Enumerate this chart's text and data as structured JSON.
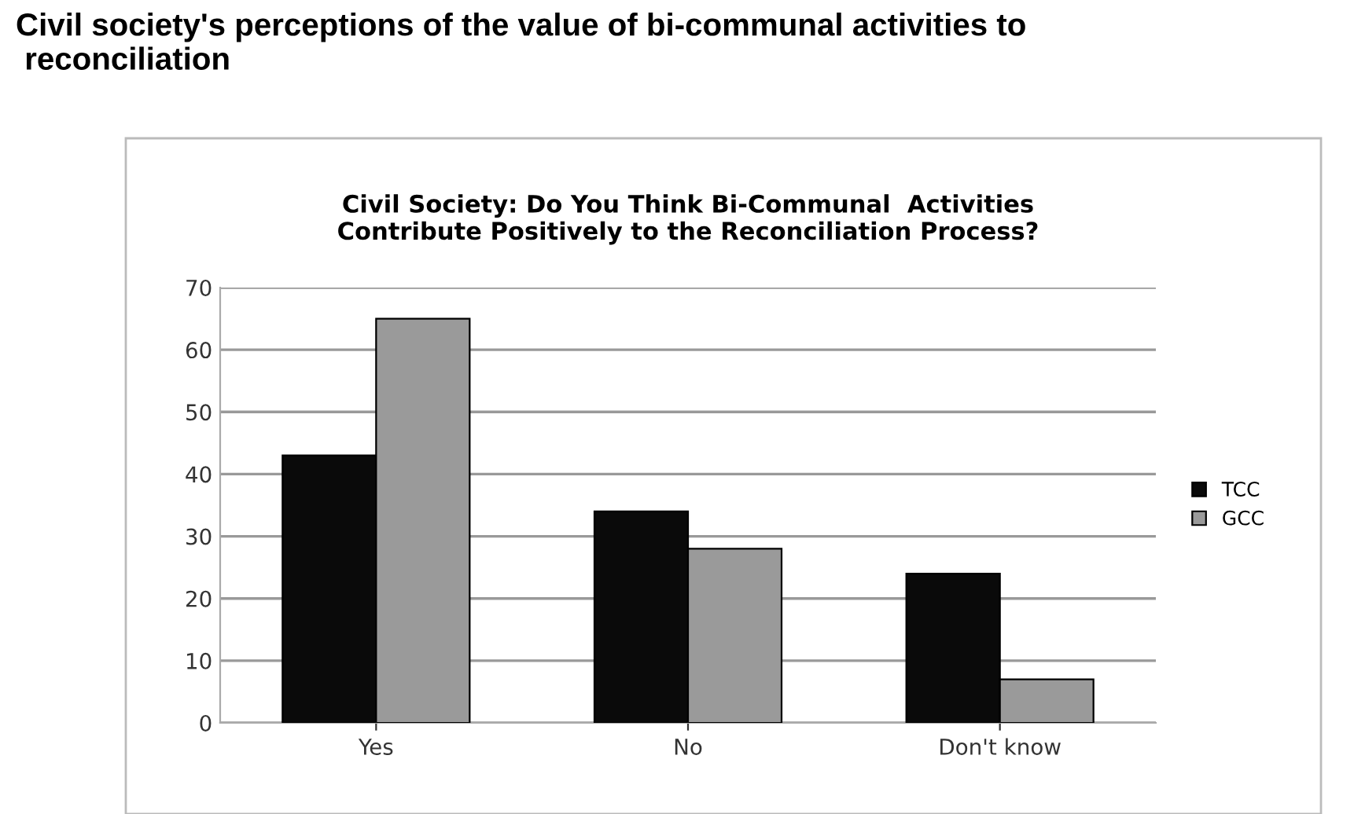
{
  "chart_data": {
    "type": "bar",
    "title": "Civil Society: Do You Think Bi-Communal  Activities\nContribute Positively to the Reconciliation Process?",
    "annotations": [
      "Civil society's perceptions of the value of bi-communal activities to\n reconciliation"
    ],
    "categories": [
      "Yes",
      "No",
      "Don't know"
    ],
    "series": [
      {
        "name": "TCC",
        "color": "#0a0a0a",
        "values": [
          43,
          34,
          24
        ]
      },
      {
        "name": "GCC",
        "color": "#9a9a9a",
        "values": [
          65,
          28,
          7
        ]
      }
    ],
    "ylim": [
      0,
      70
    ],
    "yticks": [
      0,
      10,
      20,
      30,
      40,
      50,
      60,
      70
    ],
    "grid": "y",
    "legend": "right"
  }
}
